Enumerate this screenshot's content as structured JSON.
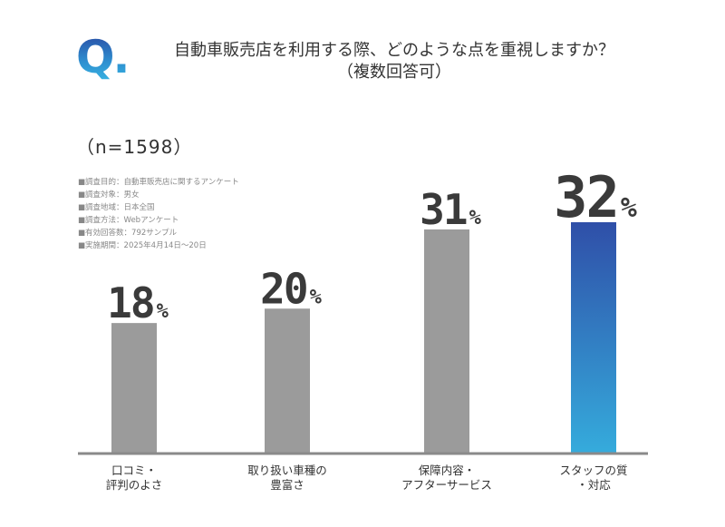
{
  "question": {
    "mark": "Q.",
    "line1": "自動車販売店を利用する際、どのような点を重視しますか？",
    "line2": "（複数回答可）"
  },
  "sample": "（n=1598）",
  "notes": [
    "■調査目的：自動車販売店に関するアンケート",
    "■調査対象：男女",
    "■調査地域：日本全国",
    "■調査方法：Webアンケート",
    "■有効回答数：792サンプル",
    "■実施期間：2025年4月14日〜20日"
  ],
  "colors": {
    "bar": "#9b9b9b",
    "highlight_top": "#2f4fa8",
    "highlight_bottom": "#35abdc",
    "axis": "#8a8a8a",
    "value_text": "#3a3a3a"
  },
  "chart_data": {
    "type": "bar",
    "categories": [
      [
        "口コミ・",
        "評判のよさ"
      ],
      [
        "取り扱い車種の",
        "豊富さ"
      ],
      [
        "保障内容・",
        "アフターサービス"
      ],
      [
        "スタッフの質",
        "・対応"
      ]
    ],
    "values": [
      18,
      20,
      31,
      32
    ],
    "value_labels": [
      "18",
      "20",
      "31",
      "32"
    ],
    "unit": "%",
    "highlight_index": 3,
    "ylim": [
      0,
      32
    ],
    "grid": false,
    "legend": "none"
  }
}
